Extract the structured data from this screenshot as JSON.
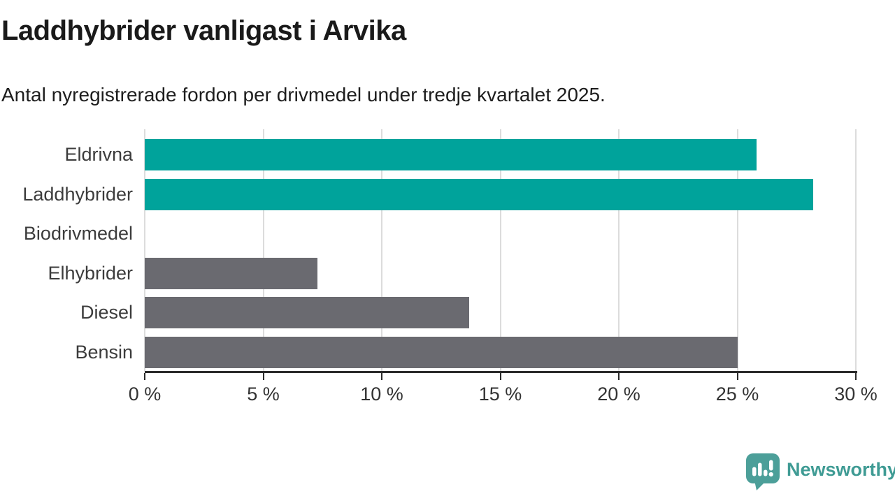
{
  "header": {
    "title": "Laddhybrider vanligast i Arvika",
    "subtitle": "Antal nyregistrerade fordon per drivmedel under tredje kvartalet 2025."
  },
  "chart_data": {
    "type": "bar",
    "orientation": "horizontal",
    "title": "Laddhybrider vanligast i Arvika",
    "subtitle": "Antal nyregistrerade fordon per drivmedel under tredje kvartalet 2025.",
    "categories": [
      "Eldrivna",
      "Laddhybrider",
      "Biodrivmedel",
      "Elhybrider",
      "Diesel",
      "Bensin"
    ],
    "values": [
      25.8,
      28.2,
      0,
      7.3,
      13.7,
      25.0
    ],
    "unit": "%",
    "bar_colors": [
      "#00a39b",
      "#00a39b",
      "#6a6a70",
      "#6a6a70",
      "#6a6a70",
      "#6a6a70"
    ],
    "highlight_color": "#00a39b",
    "base_color": "#6a6a70",
    "xlim": [
      0,
      30
    ],
    "x_ticks": [
      0,
      5,
      10,
      15,
      20,
      25,
      30
    ],
    "x_tick_labels": [
      "0 %",
      "5 %",
      "10 %",
      "15 %",
      "20 %",
      "25 %",
      "30 %"
    ],
    "grid": true,
    "legend": false
  },
  "footer": {
    "brand": "Newsworthy",
    "brand_color": "#3f9b94",
    "icon": "newsworthy-speech-bubble-bar-chart-icon",
    "icon_color": "#4c9f99"
  },
  "colors": {
    "background": "#ffffff",
    "title_text": "#1a1a1a",
    "label_text": "#3c3c3c",
    "gridline": "#dcdcdc",
    "axis": "#2b2b2b"
  }
}
